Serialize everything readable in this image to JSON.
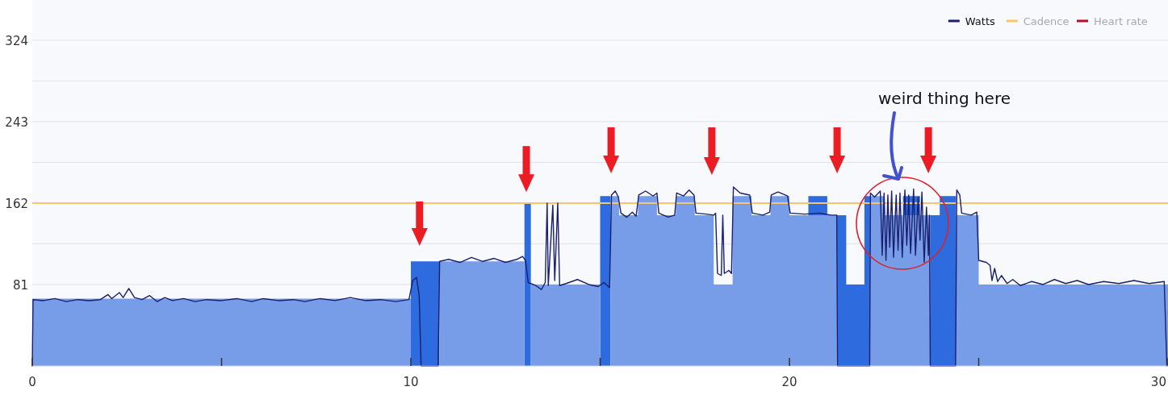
{
  "chart_data": {
    "type": "line",
    "xlim": [
      0,
      30
    ],
    "xticks": [
      0,
      {
        "value": 5,
        "label": null
      },
      10,
      {
        "value": 15,
        "label": null
      },
      20,
      {
        "value": 25,
        "label": null
      },
      30
    ],
    "ylim": [
      0,
      364
    ],
    "yticks": [
      {
        "value": 40.5,
        "label": null
      },
      81,
      {
        "value": 121.5,
        "label": null
      },
      162,
      {
        "value": 202.5,
        "label": null
      },
      243,
      {
        "value": 283.5,
        "label": null
      },
      324
    ],
    "grid": "y",
    "legend": "top right",
    "ref_lines": [
      {
        "axis": "y",
        "value": 162,
        "color": "#f7c56e"
      }
    ],
    "annotations": [
      "weird thing here"
    ],
    "series": [
      {
        "type": "area",
        "color": "#2e6bdf",
        "x": [
          10,
          10.75
        ],
        "values": [
          104,
          104
        ]
      },
      {
        "type": "area",
        "color": "#2e6bdf",
        "x": [
          13,
          13.17
        ],
        "values": [
          162,
          162
        ]
      },
      {
        "type": "area",
        "color": "#2e6bdf",
        "x": [
          15,
          15.27
        ],
        "values": [
          169,
          169
        ]
      },
      {
        "type": "area",
        "color": "#2e6bdf",
        "x": [
          20.5,
          21
        ],
        "values": [
          169,
          169
        ]
      },
      {
        "type": "area",
        "color": "#2e6bdf",
        "x": [
          21.25,
          21.5,
          21.5,
          21.98,
          21.98,
          22.13
        ],
        "values": [
          150,
          150,
          81,
          81,
          169,
          169
        ]
      },
      {
        "type": "area",
        "color": "#2e6bdf",
        "x": [
          23,
          23.45
        ],
        "values": [
          169,
          169
        ]
      },
      {
        "type": "area",
        "color": "#2e6bdf",
        "x": [
          23.73,
          23.97,
          23.97,
          24.4
        ],
        "values": [
          150,
          150,
          169,
          169
        ]
      },
      {
        "type": "area",
        "color": "#789de8",
        "x": [
          0,
          10
        ],
        "values": [
          67,
          67
        ]
      },
      {
        "type": "area",
        "color": "#789de8",
        "x": [
          10.75,
          13
        ],
        "values": [
          104,
          104
        ]
      },
      {
        "type": "area",
        "color": "#789de8",
        "x": [
          13.17,
          15
        ],
        "values": [
          81,
          81
        ]
      },
      {
        "type": "area",
        "color": "#789de8",
        "x": [
          15.27,
          15.5,
          15.5,
          16,
          16,
          16.5,
          16.5,
          17,
          17,
          17.5,
          17.5,
          18,
          18,
          18.5,
          18.5,
          19,
          19,
          19.5,
          19.5,
          20,
          20,
          21.25
        ],
        "values": [
          169,
          169,
          150,
          150,
          169,
          169,
          150,
          150,
          169,
          169,
          150,
          150,
          81,
          81,
          169,
          169,
          150,
          150,
          169,
          169,
          150,
          150
        ]
      },
      {
        "type": "area",
        "color": "#789de8",
        "x": [
          22.13,
          22.5,
          22.5,
          23.73
        ],
        "values": [
          169,
          169,
          150,
          150
        ]
      },
      {
        "type": "area",
        "color": "#789de8",
        "x": [
          24.4,
          25,
          25,
          30
        ],
        "values": [
          150,
          150,
          81,
          81
        ]
      },
      {
        "name": "Watts",
        "color": "#1a1f6e",
        "x": [
          0,
          0.02,
          0.3,
          0.6,
          0.9,
          1.2,
          1.5,
          1.8,
          2.0,
          2.1,
          2.3,
          2.4,
          2.55,
          2.7,
          2.9,
          3.1,
          3.3,
          3.5,
          3.7,
          4.0,
          4.3,
          4.6,
          5.0,
          5.4,
          5.8,
          6.1,
          6.5,
          6.9,
          7.2,
          7.6,
          8.0,
          8.4,
          8.8,
          9.2,
          9.6,
          9.95,
          10.05,
          10.15,
          10.22,
          10.27,
          10.72,
          10.76,
          11.0,
          11.3,
          11.6,
          11.9,
          12.2,
          12.5,
          12.8,
          12.95,
          13.03,
          13.1,
          13.3,
          13.45,
          13.55,
          13.6,
          13.63,
          13.75,
          13.8,
          13.88,
          13.93,
          14.1,
          14.4,
          14.7,
          14.95,
          15.1,
          15.25,
          15.3,
          15.4,
          15.48,
          15.55,
          15.7,
          15.85,
          15.95,
          16.02,
          16.2,
          16.4,
          16.5,
          16.55,
          16.8,
          16.97,
          17.02,
          17.2,
          17.35,
          17.48,
          17.53,
          17.8,
          18.0,
          18.05,
          18.1,
          18.2,
          18.24,
          18.28,
          18.4,
          18.47,
          18.52,
          18.7,
          18.95,
          19.02,
          19.3,
          19.48,
          19.52,
          19.7,
          19.95,
          20.02,
          20.4,
          20.8,
          21.1,
          21.25,
          21.27,
          22.12,
          22.14,
          22.25,
          22.4,
          22.45,
          22.5,
          22.55,
          22.6,
          22.65,
          22.7,
          22.75,
          22.82,
          22.87,
          22.92,
          22.98,
          23.05,
          23.1,
          23.15,
          23.2,
          23.28,
          23.33,
          23.4,
          23.45,
          23.5,
          23.56,
          23.62,
          23.67,
          23.7,
          23.72,
          24.39,
          24.42,
          24.5,
          24.55,
          24.8,
          24.95,
          25.0,
          25.2,
          25.3,
          25.35,
          25.42,
          25.5,
          25.6,
          25.75,
          25.9,
          26.1,
          26.4,
          26.7,
          27.0,
          27.3,
          27.6,
          27.9,
          28.3,
          28.7,
          29.1,
          29.5,
          29.9,
          29.97
        ],
        "values": [
          0,
          66,
          65,
          67,
          64,
          66,
          65,
          66,
          71,
          67,
          73,
          68,
          77,
          68,
          66,
          70,
          64,
          68,
          65,
          67,
          64,
          66,
          65,
          67,
          64,
          67,
          65,
          66,
          64,
          67,
          65,
          68,
          65,
          66,
          64,
          66,
          85,
          88,
          70,
          0,
          0,
          104,
          106,
          103,
          108,
          104,
          107,
          103,
          106,
          109,
          105,
          83,
          80,
          76,
          83,
          162,
          80,
          160,
          85,
          162,
          80,
          82,
          86,
          81,
          79,
          83,
          78,
          170,
          174,
          168,
          152,
          148,
          153,
          149,
          170,
          174,
          169,
          172,
          152,
          148,
          150,
          172,
          169,
          175,
          170,
          152,
          151,
          150,
          152,
          92,
          90,
          150,
          92,
          95,
          92,
          178,
          172,
          170,
          152,
          150,
          153,
          170,
          173,
          169,
          152,
          151,
          152,
          150,
          150,
          0,
          0,
          172,
          168,
          174,
          110,
          172,
          105,
          170,
          118,
          174,
          108,
          170,
          115,
          172,
          108,
          175,
          120,
          170,
          112,
          176,
          110,
          168,
          125,
          173,
          103,
          158,
          110,
          150,
          0,
          0,
          175,
          170,
          152,
          150,
          153,
          105,
          103,
          100,
          85,
          97,
          84,
          90,
          82,
          86,
          80,
          84,
          81,
          86,
          82,
          85,
          81,
          84,
          82,
          85,
          82,
          84,
          0
        ]
      },
      {
        "name": "Cadence",
        "color": "#f7c56e"
      },
      {
        "name": "Heart rate",
        "color": "#b0102a"
      }
    ]
  }
}
